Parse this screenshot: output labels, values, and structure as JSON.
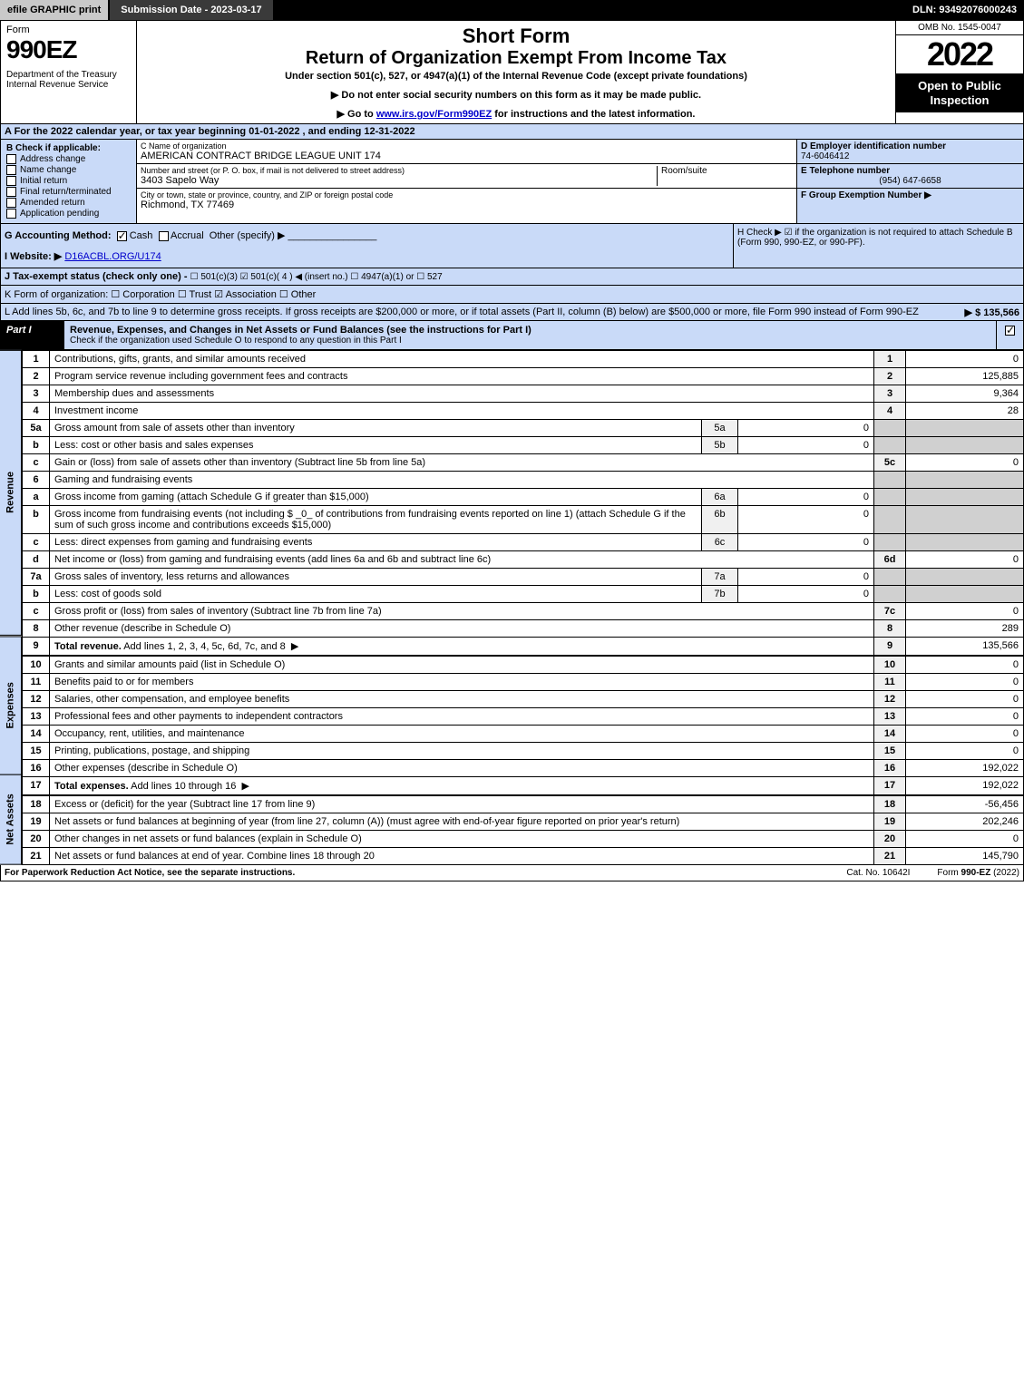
{
  "topbar": {
    "efile": "efile GRAPHIC print",
    "submission": "Submission Date - 2023-03-17",
    "dln": "DLN: 93492076000243"
  },
  "header": {
    "form_word": "Form",
    "form_num": "990EZ",
    "dept": "Department of the Treasury\nInternal Revenue Service",
    "short_form": "Short Form",
    "main_title": "Return of Organization Exempt From Income Tax",
    "sub1": "Under section 501(c), 527, or 4947(a)(1) of the Internal Revenue Code (except private foundations)",
    "sub2": "▶ Do not enter social security numbers on this form as it may be made public.",
    "sub3_pre": "▶ Go to ",
    "sub3_link": "www.irs.gov/Form990EZ",
    "sub3_post": " for instructions and the latest information.",
    "omb": "OMB No. 1545-0047",
    "year": "2022",
    "badge": "Open to Public Inspection"
  },
  "lineA": "A  For the 2022 calendar year, or tax year beginning 01-01-2022 , and ending 12-31-2022",
  "sectionB": {
    "header": "B  Check if applicable:",
    "items": [
      "Address change",
      "Name change",
      "Initial return",
      "Final return/terminated",
      "Amended return",
      "Application pending"
    ]
  },
  "org": {
    "name_label": "C Name of organization",
    "name": "AMERICAN CONTRACT BRIDGE LEAGUE UNIT 174",
    "street_label": "Number and street (or P. O. box, if mail is not delivered to street address)",
    "street": "3403 Sapelo Way",
    "room_label": "Room/suite",
    "city_label": "City or town, state or province, country, and ZIP or foreign postal code",
    "city": "Richmond, TX  77469"
  },
  "right": {
    "ein_label": "D Employer identification number",
    "ein": "74-6046412",
    "tel_label": "E Telephone number",
    "tel": "(954) 647-6658",
    "grp_label": "F Group Exemption Number  ▶"
  },
  "lineG": {
    "left_label": "G Accounting Method:",
    "cash": "Cash",
    "accrual": "Accrual",
    "other": "Other (specify) ▶",
    "website_label": "I Website: ▶",
    "website": "D16ACBL.ORG/U174",
    "j_label": "J Tax-exempt status (check only one) -",
    "j_opts": "☐ 501(c)(3)  ☑ 501(c)( 4 ) ◀ (insert no.)  ☐ 4947(a)(1) or  ☐ 527",
    "h_text": "H  Check ▶ ☑ if the organization is not required to attach Schedule B (Form 990, 990-EZ, or 990-PF)."
  },
  "lineK": "K Form of organization:   ☐ Corporation   ☐ Trust   ☑ Association   ☐ Other",
  "lineL": {
    "text": "L Add lines 5b, 6c, and 7b to line 9 to determine gross receipts. If gross receipts are $200,000 or more, or if total assets (Part II, column (B) below) are $500,000 or more, file Form 990 instead of Form 990-EZ",
    "amount": "▶ $ 135,566"
  },
  "partI": {
    "label": "Part I",
    "title": "Revenue, Expenses, and Changes in Net Assets or Fund Balances (see the instructions for Part I)",
    "note": "Check if the organization used Schedule O to respond to any question in this Part I"
  },
  "side_labels": {
    "revenue": "Revenue",
    "expenses": "Expenses",
    "netassets": "Net Assets"
  },
  "revenue": [
    {
      "n": "1",
      "d": "Contributions, gifts, grants, and similar amounts received",
      "ln": "1",
      "v": "0"
    },
    {
      "n": "2",
      "d": "Program service revenue including government fees and contracts",
      "ln": "2",
      "v": "125,885"
    },
    {
      "n": "3",
      "d": "Membership dues and assessments",
      "ln": "3",
      "v": "9,364"
    },
    {
      "n": "4",
      "d": "Investment income",
      "ln": "4",
      "v": "28"
    },
    {
      "n": "5a",
      "d": "Gross amount from sale of assets other than inventory",
      "sl": "5a",
      "sv": "0"
    },
    {
      "n": "b",
      "d": "Less: cost or other basis and sales expenses",
      "sl": "5b",
      "sv": "0"
    },
    {
      "n": "c",
      "d": "Gain or (loss) from sale of assets other than inventory (Subtract line 5b from line 5a)",
      "ln": "5c",
      "v": "0"
    },
    {
      "n": "6",
      "d": "Gaming and fundraising events"
    },
    {
      "n": "a",
      "d": "Gross income from gaming (attach Schedule G if greater than $15,000)",
      "sl": "6a",
      "sv": "0"
    },
    {
      "n": "b",
      "d": "Gross income from fundraising events (not including $ _0_ of contributions from fundraising events reported on line 1) (attach Schedule G if the sum of such gross income and contributions exceeds $15,000)",
      "sl": "6b",
      "sv": "0"
    },
    {
      "n": "c",
      "d": "Less: direct expenses from gaming and fundraising events",
      "sl": "6c",
      "sv": "0"
    },
    {
      "n": "d",
      "d": "Net income or (loss) from gaming and fundraising events (add lines 6a and 6b and subtract line 6c)",
      "ln": "6d",
      "v": "0"
    },
    {
      "n": "7a",
      "d": "Gross sales of inventory, less returns and allowances",
      "sl": "7a",
      "sv": "0"
    },
    {
      "n": "b",
      "d": "Less: cost of goods sold",
      "sl": "7b",
      "sv": "0"
    },
    {
      "n": "c",
      "d": "Gross profit or (loss) from sales of inventory (Subtract line 7b from line 7a)",
      "ln": "7c",
      "v": "0"
    },
    {
      "n": "8",
      "d": "Other revenue (describe in Schedule O)",
      "ln": "8",
      "v": "289"
    },
    {
      "n": "9",
      "d": "Total revenue. Add lines 1, 2, 3, 4, 5c, 6d, 7c, and 8",
      "ln": "9",
      "v": "135,566",
      "arrow": true,
      "bold": true
    }
  ],
  "expenses": [
    {
      "n": "10",
      "d": "Grants and similar amounts paid (list in Schedule O)",
      "ln": "10",
      "v": "0"
    },
    {
      "n": "11",
      "d": "Benefits paid to or for members",
      "ln": "11",
      "v": "0"
    },
    {
      "n": "12",
      "d": "Salaries, other compensation, and employee benefits",
      "ln": "12",
      "v": "0"
    },
    {
      "n": "13",
      "d": "Professional fees and other payments to independent contractors",
      "ln": "13",
      "v": "0"
    },
    {
      "n": "14",
      "d": "Occupancy, rent, utilities, and maintenance",
      "ln": "14",
      "v": "0"
    },
    {
      "n": "15",
      "d": "Printing, publications, postage, and shipping",
      "ln": "15",
      "v": "0"
    },
    {
      "n": "16",
      "d": "Other expenses (describe in Schedule O)",
      "ln": "16",
      "v": "192,022"
    },
    {
      "n": "17",
      "d": "Total expenses. Add lines 10 through 16",
      "ln": "17",
      "v": "192,022",
      "arrow": true,
      "bold": true
    }
  ],
  "netassets": [
    {
      "n": "18",
      "d": "Excess or (deficit) for the year (Subtract line 17 from line 9)",
      "ln": "18",
      "v": "-56,456"
    },
    {
      "n": "19",
      "d": "Net assets or fund balances at beginning of year (from line 27, column (A)) (must agree with end-of-year figure reported on prior year's return)",
      "ln": "19",
      "v": "202,246"
    },
    {
      "n": "20",
      "d": "Other changes in net assets or fund balances (explain in Schedule O)",
      "ln": "20",
      "v": "0"
    },
    {
      "n": "21",
      "d": "Net assets or fund balances at end of year. Combine lines 18 through 20",
      "ln": "21",
      "v": "145,790"
    }
  ],
  "footer": {
    "l": "For Paperwork Reduction Act Notice, see the separate instructions.",
    "m": "Cat. No. 10642I",
    "r": "Form 990-EZ (2022)"
  },
  "colors": {
    "bg_blue": "#c9daf8",
    "black": "#000000"
  }
}
